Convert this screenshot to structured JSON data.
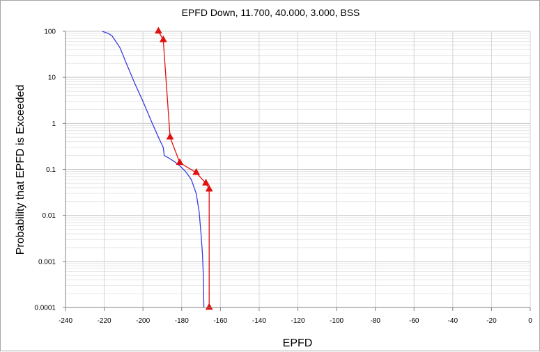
{
  "chart_data": {
    "type": "line",
    "title": "EPFD Down, 11.700, 40.000, 3.000, BSS",
    "xlabel": "EPFD",
    "ylabel": "Probability that EPFD is Exceeded",
    "xlim": [
      -240,
      0
    ],
    "ylim": [
      0.0001,
      100
    ],
    "yscale": "log",
    "grid": true,
    "x_ticks": [
      -240,
      -220,
      -200,
      -180,
      -160,
      -140,
      -120,
      -100,
      -80,
      -60,
      -40,
      -20,
      0
    ],
    "x_tick_labels": [
      "-240",
      "-220",
      "-200",
      "-180",
      "-160",
      "-140",
      "-120",
      "-100",
      "-80",
      "-60",
      "-40",
      "-20",
      "0"
    ],
    "y_ticks": [
      0.0001,
      0.001,
      0.01,
      0.1,
      1,
      10,
      100
    ],
    "y_tick_labels": [
      "0.0001",
      "0.001",
      "0.01",
      "0.1",
      "1",
      "10",
      "100"
    ],
    "series": [
      {
        "color": "#3b3bdf",
        "marker": "none",
        "x": [
          -221,
          -218,
          -216,
          -214,
          -212,
          -210.5,
          -209,
          -207,
          -204,
          -200,
          -196,
          -192,
          -189.5,
          -189,
          -187,
          -184,
          -181,
          -178,
          -175,
          -172.5,
          -171,
          -170,
          -169.3,
          -168.9,
          -168.7,
          -168.6,
          -168.55
        ],
        "y": [
          100,
          90,
          80,
          60,
          45,
          32,
          22,
          14,
          7,
          3,
          1.2,
          0.5,
          0.3,
          0.2,
          0.18,
          0.15,
          0.12,
          0.09,
          0.06,
          0.03,
          0.012,
          0.004,
          0.0015,
          0.0006,
          0.0003,
          0.00015,
          0.0001
        ]
      },
      {
        "color": "#e01010",
        "marker": "triangle",
        "x": [
          -192,
          -189.5,
          -186,
          -181,
          -172.5,
          -167.5,
          -165.8,
          -165.8
        ],
        "y": [
          100,
          65,
          0.5,
          0.14,
          0.085,
          0.05,
          0.037,
          0.0001
        ]
      }
    ]
  }
}
